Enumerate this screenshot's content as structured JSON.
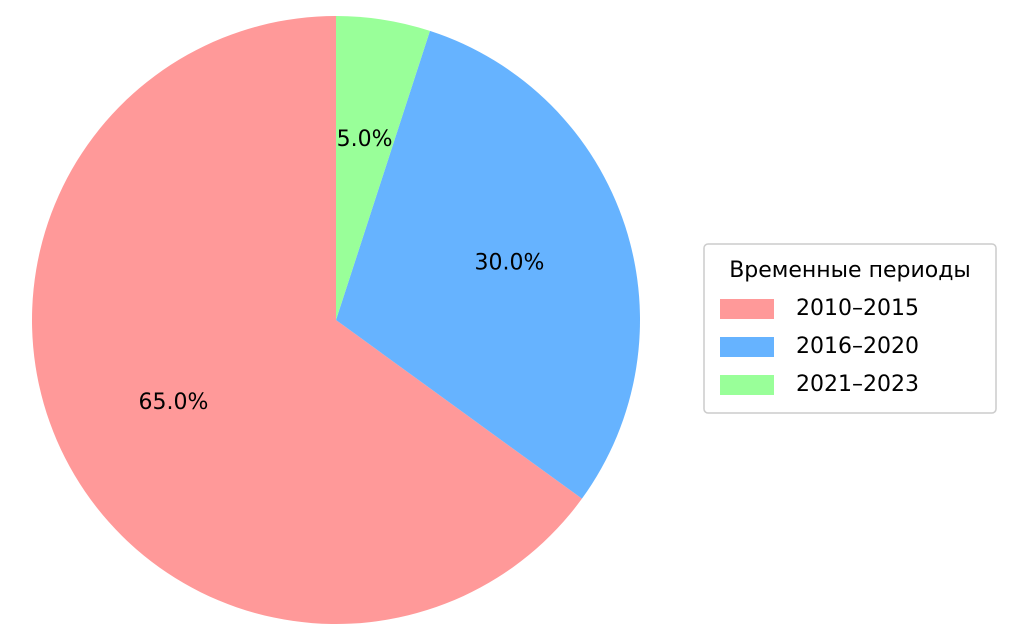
{
  "chart_data": {
    "type": "pie",
    "categories": [
      "2010–2015",
      "2016–2020",
      "2021–2023"
    ],
    "values": [
      65,
      30,
      5
    ],
    "value_labels": [
      "65.0%",
      "30.0%",
      "5.0%"
    ],
    "colors": [
      "#ff9999",
      "#66b3ff",
      "#99ff99"
    ],
    "legend_title": "Временные периоды"
  }
}
